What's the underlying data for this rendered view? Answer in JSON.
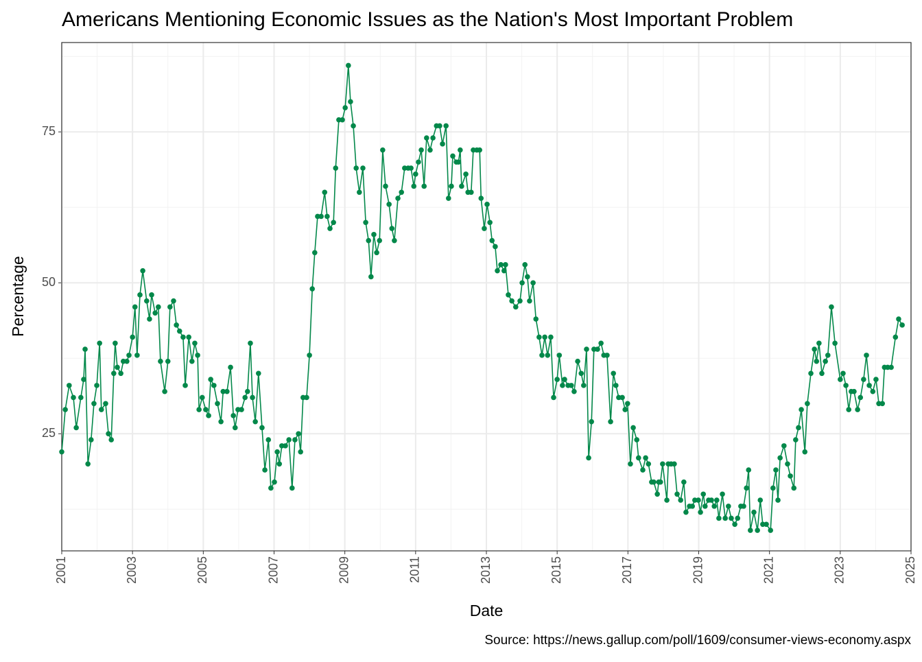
{
  "chart_data": {
    "type": "line",
    "title": "Americans Mentioning Economic Issues as the Nation's Most Important Problem",
    "x_label": "Date",
    "y_label": "Percentage",
    "caption": "Source: https://news.gallup.com/poll/1609/consumer-views-economy.aspx",
    "xlim": [
      2001,
      2025
    ],
    "xticks": [
      2001,
      2003,
      2005,
      2007,
      2009,
      2011,
      2013,
      2015,
      2017,
      2019,
      2021,
      2023,
      2025
    ],
    "x_minor_ticks": [
      2002,
      2004,
      2006,
      2008,
      2010,
      2012,
      2014,
      2016,
      2018,
      2020,
      2022,
      2024
    ],
    "ylim": [
      5.6,
      89.8
    ],
    "yticks": [
      25,
      50,
      75
    ],
    "y_minor_ticks": [
      12.5,
      37.5,
      62.5,
      87.5
    ],
    "grid": true,
    "series": [
      {
        "color": "#03884a",
        "x": [
          2001.0,
          2001.1,
          2001.21,
          2001.33,
          2001.41,
          2001.54,
          2001.62,
          2001.66,
          2001.74,
          2001.83,
          2001.91,
          2001.99,
          2002.07,
          2002.12,
          2002.24,
          2002.32,
          2002.4,
          2002.47,
          2002.51,
          2002.57,
          2002.67,
          2002.74,
          2002.84,
          2002.9,
          2003.0,
          2003.07,
          2003.13,
          2003.21,
          2003.29,
          2003.4,
          2003.48,
          2003.54,
          2003.64,
          2003.73,
          2003.79,
          2003.91,
          2004.0,
          2004.06,
          2004.16,
          2004.24,
          2004.33,
          2004.43,
          2004.49,
          2004.59,
          2004.68,
          2004.76,
          2004.84,
          2004.88,
          2004.97,
          2005.07,
          2005.15,
          2005.21,
          2005.3,
          2005.4,
          2005.5,
          2005.56,
          2005.67,
          2005.77,
          2005.85,
          2005.9,
          2005.98,
          2006.08,
          2006.18,
          2006.25,
          2006.33,
          2006.39,
          2006.47,
          2006.56,
          2006.66,
          2006.74,
          2006.84,
          2006.91,
          2007.01,
          2007.09,
          2007.15,
          2007.22,
          2007.32,
          2007.42,
          2007.51,
          2007.59,
          2007.69,
          2007.75,
          2007.82,
          2007.92,
          2008.0,
          2008.08,
          2008.15,
          2008.23,
          2008.33,
          2008.43,
          2008.5,
          2008.58,
          2008.68,
          2008.74,
          2008.83,
          2008.93,
          2009.01,
          2009.1,
          2009.16,
          2009.24,
          2009.32,
          2009.41,
          2009.51,
          2009.59,
          2009.67,
          2009.74,
          2009.82,
          2009.9,
          2009.98,
          2010.07,
          2010.15,
          2010.25,
          2010.33,
          2010.4,
          2010.5,
          2010.6,
          2010.69,
          2010.79,
          2010.87,
          2010.95,
          2011.0,
          2011.08,
          2011.16,
          2011.24,
          2011.31,
          2011.41,
          2011.49,
          2011.59,
          2011.68,
          2011.76,
          2011.86,
          2011.93,
          2012.01,
          2012.05,
          2012.15,
          2012.21,
          2012.26,
          2012.3,
          2012.42,
          2012.48,
          2012.57,
          2012.63,
          2012.73,
          2012.81,
          2012.85,
          2012.94,
          2013.02,
          2013.1,
          2013.16,
          2013.25,
          2013.31,
          2013.41,
          2013.5,
          2013.54,
          2013.62,
          2013.72,
          2013.83,
          2013.95,
          2014.01,
          2014.09,
          2014.16,
          2014.22,
          2014.32,
          2014.4,
          2014.49,
          2014.57,
          2014.65,
          2014.73,
          2014.82,
          2014.9,
          2015.0,
          2015.06,
          2015.15,
          2015.21,
          2015.31,
          2015.4,
          2015.48,
          2015.58,
          2015.68,
          2015.75,
          2015.83,
          2015.89,
          2015.97,
          2016.04,
          2016.14,
          2016.24,
          2016.32,
          2016.41,
          2016.51,
          2016.59,
          2016.66,
          2016.74,
          2016.84,
          2016.92,
          2016.99,
          2017.07,
          2017.15,
          2017.25,
          2017.3,
          2017.42,
          2017.5,
          2017.58,
          2017.67,
          2017.73,
          2017.83,
          2017.87,
          2017.92,
          2017.98,
          2018.1,
          2018.14,
          2018.22,
          2018.31,
          2018.39,
          2018.49,
          2018.58,
          2018.64,
          2018.74,
          2018.82,
          2018.89,
          2018.99,
          2019.05,
          2019.13,
          2019.18,
          2019.28,
          2019.36,
          2019.44,
          2019.51,
          2019.57,
          2019.67,
          2019.75,
          2019.84,
          2019.92,
          2020.02,
          2020.1,
          2020.19,
          2020.27,
          2020.35,
          2020.41,
          2020.46,
          2020.56,
          2020.66,
          2020.74,
          2020.81,
          2020.91,
          2021.03,
          2021.1,
          2021.18,
          2021.24,
          2021.3,
          2021.41,
          2021.51,
          2021.59,
          2021.69,
          2021.74,
          2021.82,
          2021.9,
          2022.0,
          2022.07,
          2022.17,
          2022.27,
          2022.33,
          2022.4,
          2022.48,
          2022.58,
          2022.65,
          2022.75,
          2022.85,
          2023.0,
          2023.08,
          2023.16,
          2023.24,
          2023.31,
          2023.39,
          2023.49,
          2023.57,
          2023.66,
          2023.74,
          2023.82,
          2023.92,
          2024.01,
          2024.09,
          2024.19,
          2024.25,
          2024.34,
          2024.44,
          2024.56,
          2024.65,
          2024.75
        ],
        "values": [
          22,
          29,
          33,
          31,
          26,
          31,
          34,
          39,
          20,
          24,
          30,
          33,
          40,
          29,
          30,
          25,
          24,
          35,
          40,
          36,
          35,
          37,
          37,
          38,
          41,
          46,
          38,
          48,
          52,
          47,
          44,
          48,
          45,
          46,
          37,
          32,
          37,
          46,
          47,
          43,
          42,
          41,
          33,
          41,
          37,
          40,
          38,
          29,
          31,
          29,
          28,
          34,
          33,
          30,
          27,
          32,
          32,
          36,
          28,
          26,
          29,
          29,
          31,
          32,
          40,
          31,
          27,
          35,
          26,
          19,
          24,
          16,
          17,
          22,
          20,
          23,
          23,
          24,
          16,
          24,
          25,
          22,
          31,
          31,
          38,
          49,
          55,
          61,
          61,
          65,
          61,
          59,
          60,
          69,
          77,
          77,
          79,
          86,
          80,
          76,
          69,
          65,
          69,
          60,
          57,
          51,
          58,
          55,
          57,
          72,
          66,
          63,
          59,
          57,
          64,
          65,
          69,
          69,
          69,
          66,
          68,
          70,
          72,
          66,
          74,
          72,
          74,
          76,
          76,
          73,
          76,
          64,
          66,
          71,
          70,
          70,
          72,
          66,
          68,
          65,
          65,
          72,
          72,
          72,
          64,
          59,
          63,
          60,
          57,
          56,
          52,
          53,
          52,
          53,
          48,
          47,
          46,
          47,
          50,
          53,
          51,
          47,
          50,
          44,
          41,
          38,
          41,
          38,
          41,
          31,
          34,
          38,
          33,
          34,
          33,
          33,
          32,
          37,
          35,
          33,
          39,
          21,
          27,
          39,
          39,
          40,
          38,
          38,
          27,
          35,
          33,
          31,
          31,
          29,
          30,
          20,
          26,
          24,
          21,
          19,
          21,
          20,
          17,
          17,
          15,
          17,
          17,
          20,
          14,
          20,
          20,
          20,
          15,
          14,
          17,
          12,
          13,
          13,
          14,
          14,
          12,
          15,
          13,
          14,
          14,
          13,
          14,
          11,
          15,
          11,
          13,
          11,
          10,
          11,
          13,
          13,
          16,
          19,
          9,
          12,
          9,
          14,
          10,
          10,
          9,
          16,
          19,
          14,
          21,
          23,
          20,
          18,
          16,
          24,
          26,
          29,
          22,
          30,
          35,
          39,
          37,
          40,
          35,
          37,
          38,
          46,
          40,
          34,
          35,
          33,
          29,
          32,
          32,
          29,
          31,
          34,
          38,
          33,
          32,
          34,
          30,
          30,
          36,
          36,
          36,
          41,
          44,
          43
        ]
      }
    ]
  }
}
